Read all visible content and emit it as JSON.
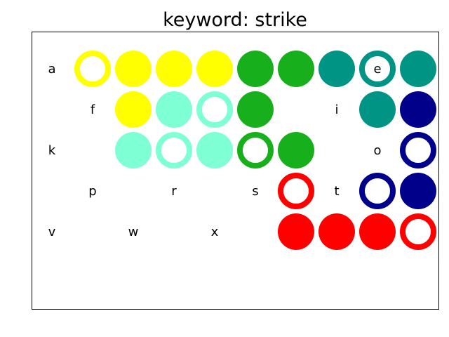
{
  "title": "keyword: strike",
  "colors": {
    "yellow": "#ffff00",
    "aquamarine": "#7fffd4",
    "green": "#17b01c",
    "teal": "#009485",
    "navy": "#00008b",
    "red": "#ff0000"
  },
  "rows": [
    [
      {
        "letter": "a"
      },
      {
        "color": "yellow",
        "style": "ring"
      },
      {
        "color": "yellow",
        "style": "filled"
      },
      {
        "color": "yellow",
        "style": "filled"
      },
      {
        "color": "yellow",
        "style": "filled"
      },
      {
        "color": "green",
        "style": "filled"
      },
      {
        "color": "green",
        "style": "filled"
      },
      {
        "color": "teal",
        "style": "filled"
      },
      {
        "color": "teal",
        "style": "ring",
        "letter": "e"
      },
      {
        "color": "teal",
        "style": "filled"
      }
    ],
    [
      {},
      {
        "letter": "f"
      },
      {
        "color": "yellow",
        "style": "filled"
      },
      {
        "color": "aquamarine",
        "style": "filled"
      },
      {
        "color": "aquamarine",
        "style": "ring"
      },
      {
        "color": "green",
        "style": "filled"
      },
      {},
      {
        "letter": "i"
      },
      {
        "color": "teal",
        "style": "filled"
      },
      {
        "color": "navy",
        "style": "filled"
      }
    ],
    [
      {
        "letter": "k"
      },
      {},
      {
        "color": "aquamarine",
        "style": "filled"
      },
      {
        "color": "aquamarine",
        "style": "ring"
      },
      {
        "color": "aquamarine",
        "style": "filled"
      },
      {
        "color": "green",
        "style": "ring"
      },
      {
        "color": "green",
        "style": "filled"
      },
      {},
      {
        "letter": "o"
      },
      {
        "color": "navy",
        "style": "ring"
      }
    ],
    [
      {},
      {
        "letter": "p"
      },
      {},
      {
        "letter": "r"
      },
      {},
      {
        "letter": "s"
      },
      {
        "color": "red",
        "style": "ring"
      },
      {
        "letter": "t"
      },
      {
        "color": "navy",
        "style": "ring"
      },
      {
        "color": "navy",
        "style": "filled"
      }
    ],
    [
      {
        "letter": "v"
      },
      {},
      {
        "letter": "w"
      },
      {},
      {
        "letter": "x"
      },
      {},
      {
        "color": "red",
        "style": "filled"
      },
      {
        "color": "red",
        "style": "filled"
      },
      {
        "color": "red",
        "style": "filled"
      },
      {
        "color": "red",
        "style": "ring"
      }
    ]
  ]
}
